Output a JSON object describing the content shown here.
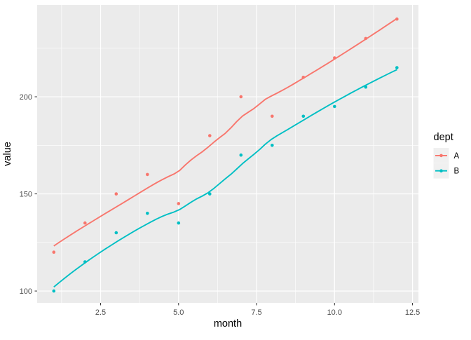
{
  "chart_data": {
    "type": "scatter",
    "smoother": "loess",
    "title": "",
    "xlabel": "month",
    "ylabel": "value",
    "x": [
      1,
      2,
      3,
      4,
      5,
      6,
      7,
      8,
      9,
      10,
      11,
      12
    ],
    "series": [
      {
        "name": "A",
        "color": "#F8766D",
        "values": [
          120,
          135,
          150,
          160,
          145,
          180,
          200,
          190,
          210,
          220,
          230,
          240
        ]
      },
      {
        "name": "B",
        "color": "#00BFC4",
        "values": [
          100,
          115,
          130,
          140,
          135,
          150,
          170,
          175,
          190,
          195,
          205,
          215
        ]
      }
    ],
    "x_ticks": {
      "values": [
        2.5,
        5,
        7.5,
        10,
        12.5
      ],
      "labels": [
        "2.5",
        "5.0",
        "7.5",
        "10.0",
        "12.5"
      ]
    },
    "y_ticks": {
      "values": [
        100,
        150,
        200
      ],
      "labels": [
        "100",
        "150",
        "200"
      ]
    },
    "xlim": [
      0.466,
      12.69
    ],
    "ylim": [
      93.9,
      247.3
    ],
    "grid": "on",
    "legend": {
      "title": "dept",
      "position": "right",
      "entries": [
        {
          "label": "A",
          "color": "#F8766D"
        },
        {
          "label": "B",
          "color": "#00BFC4"
        }
      ]
    },
    "style": {
      "panel_bg": "#EBEBEB",
      "grid_color": "#FFFFFF",
      "legend_key_bg": "#F0F0F0",
      "axis_text_color": "#4D4D4D",
      "tick_mark_color": "#333333"
    }
  }
}
